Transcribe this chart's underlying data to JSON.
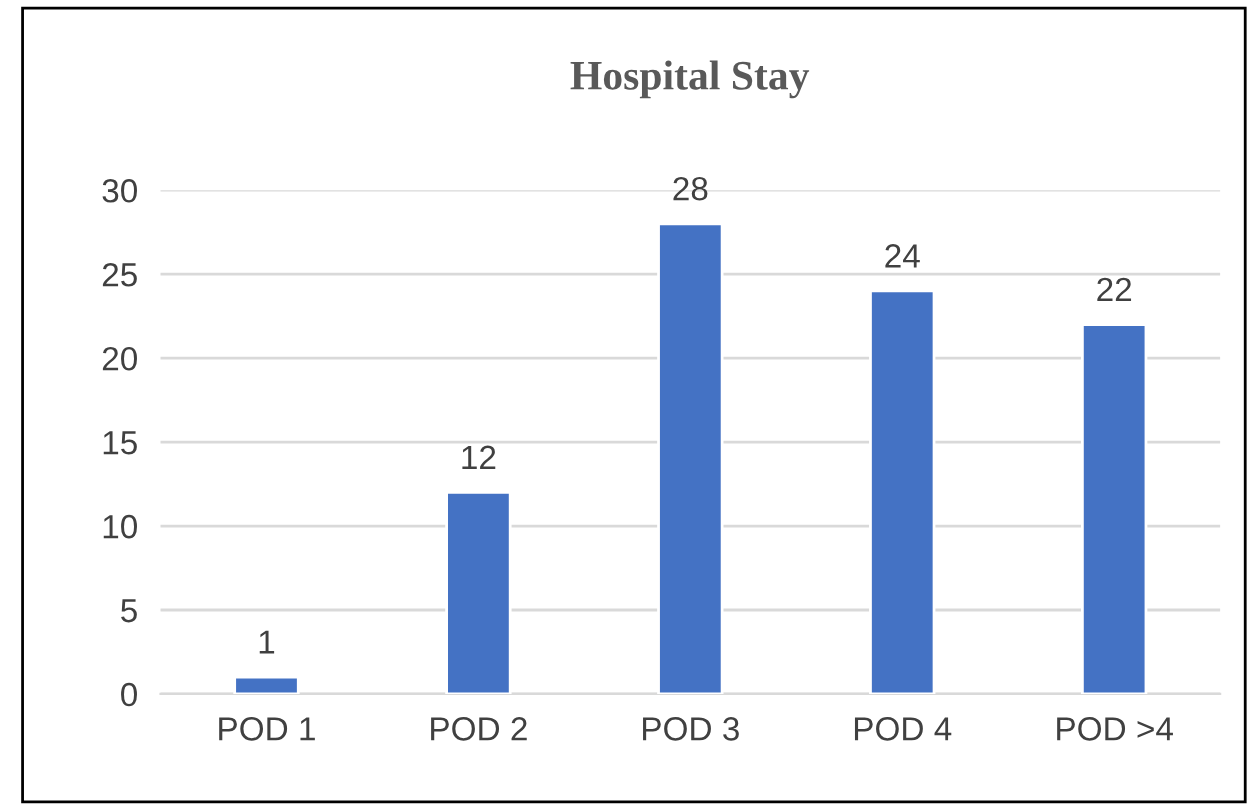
{
  "chart_data": {
    "type": "bar",
    "title": "Hospital Stay",
    "categories": [
      "POD 1",
      "POD 2",
      "POD 3",
      "POD 4",
      "POD >4"
    ],
    "values": [
      1,
      12,
      28,
      24,
      22
    ],
    "color": "#4472c4",
    "ylim": [
      0,
      30
    ],
    "yticks": [
      0,
      5,
      10,
      15,
      20,
      25,
      30
    ],
    "grid": "y",
    "data_labels": true
  }
}
